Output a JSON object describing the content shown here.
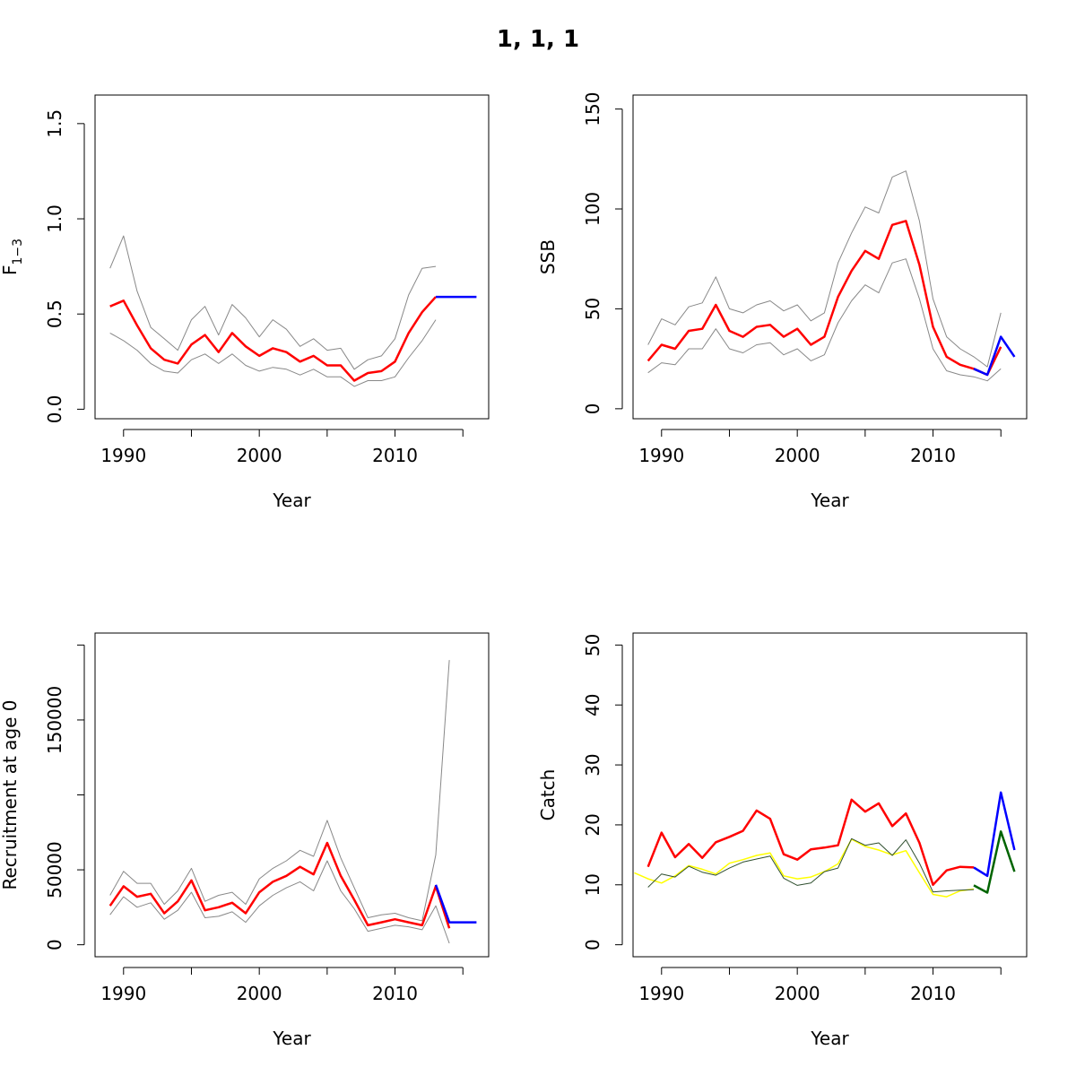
{
  "figure": {
    "title": "1, 1, 1"
  },
  "chart_data": [
    {
      "type": "line",
      "xlabel": "Year",
      "ylabel": "F",
      "ylabel_sub": "1−3",
      "xlim": [
        1987.9,
        2016.9
      ],
      "ylim": [
        -0.05,
        1.65
      ],
      "xticks": [
        1990,
        1995,
        2000,
        2005,
        2010,
        2015
      ],
      "xtick_labels": [
        "1990",
        "",
        "2000",
        "",
        "2010",
        ""
      ],
      "yticks": [
        0.0,
        0.5,
        1.0,
        1.5
      ],
      "ytick_labels": [
        "0.0",
        "0.5",
        "1.0",
        "1.5"
      ],
      "series": [
        {
          "color": "#888888",
          "width": 1,
          "x": [
            1989,
            1990,
            1991,
            1992,
            1993,
            1994,
            1995,
            1996,
            1997,
            1998,
            1999,
            2000,
            2001,
            2002,
            2003,
            2004,
            2005,
            2006,
            2007,
            2008,
            2009,
            2010,
            2011,
            2012,
            2013
          ],
          "values": [
            0.74,
            0.91,
            0.62,
            0.43,
            0.37,
            0.31,
            0.47,
            0.54,
            0.39,
            0.55,
            0.48,
            0.38,
            0.47,
            0.42,
            0.33,
            0.37,
            0.31,
            0.32,
            0.21,
            0.26,
            0.28,
            0.37,
            0.6,
            0.74,
            0.75
          ]
        },
        {
          "color": "#888888",
          "width": 1,
          "x": [
            1989,
            1990,
            1991,
            1992,
            1993,
            1994,
            1995,
            1996,
            1997,
            1998,
            1999,
            2000,
            2001,
            2002,
            2003,
            2004,
            2005,
            2006,
            2007,
            2008,
            2009,
            2010,
            2011,
            2012,
            2013
          ],
          "values": [
            0.4,
            0.36,
            0.31,
            0.24,
            0.2,
            0.19,
            0.26,
            0.29,
            0.24,
            0.29,
            0.23,
            0.2,
            0.22,
            0.21,
            0.18,
            0.21,
            0.17,
            0.17,
            0.12,
            0.15,
            0.15,
            0.17,
            0.27,
            0.36,
            0.47
          ]
        },
        {
          "color": "#ff0000",
          "width": 2.5,
          "x": [
            1989,
            1990,
            1991,
            1992,
            1993,
            1994,
            1995,
            1996,
            1997,
            1998,
            1999,
            2000,
            2001,
            2002,
            2003,
            2004,
            2005,
            2006,
            2007,
            2008,
            2009,
            2010,
            2011,
            2012,
            2013
          ],
          "values": [
            0.54,
            0.57,
            0.44,
            0.32,
            0.26,
            0.24,
            0.34,
            0.39,
            0.3,
            0.4,
            0.33,
            0.28,
            0.32,
            0.3,
            0.25,
            0.28,
            0.23,
            0.23,
            0.15,
            0.19,
            0.2,
            0.25,
            0.4,
            0.51,
            0.59
          ]
        },
        {
          "color": "#0000ff",
          "width": 2.5,
          "x": [
            2013,
            2014,
            2015,
            2016
          ],
          "values": [
            0.59,
            0.59,
            0.59,
            0.59
          ]
        }
      ]
    },
    {
      "type": "line",
      "xlabel": "Year",
      "ylabel": "SSB",
      "xlim": [
        1987.9,
        2016.9
      ],
      "ylim": [
        -5,
        157
      ],
      "xticks": [
        1990,
        1995,
        2000,
        2005,
        2010,
        2015
      ],
      "xtick_labels": [
        "1990",
        "",
        "2000",
        "",
        "2010",
        ""
      ],
      "yticks": [
        0,
        50,
        100,
        150
      ],
      "ytick_labels": [
        "0",
        "50",
        "100",
        "150"
      ],
      "series": [
        {
          "color": "#888888",
          "width": 1,
          "x": [
            1989,
            1990,
            1991,
            1992,
            1993,
            1994,
            1995,
            1996,
            1997,
            1998,
            1999,
            2000,
            2001,
            2002,
            2003,
            2004,
            2005,
            2006,
            2007,
            2008,
            2009,
            2010,
            2011,
            2012,
            2013,
            2014,
            2015
          ],
          "values": [
            32,
            45,
            42,
            51,
            53,
            66,
            50,
            48,
            52,
            54,
            49,
            52,
            44,
            48,
            73,
            88,
            101,
            98,
            116,
            119,
            94,
            55,
            36,
            30,
            26,
            21,
            48
          ]
        },
        {
          "color": "#888888",
          "width": 1,
          "x": [
            1989,
            1990,
            1991,
            1992,
            1993,
            1994,
            1995,
            1996,
            1997,
            1998,
            1999,
            2000,
            2001,
            2002,
            2003,
            2004,
            2005,
            2006,
            2007,
            2008,
            2009,
            2010,
            2011,
            2012,
            2013,
            2014,
            2015
          ],
          "values": [
            18,
            23,
            22,
            30,
            30,
            40,
            30,
            28,
            32,
            33,
            27,
            30,
            24,
            27,
            43,
            54,
            62,
            58,
            73,
            75,
            55,
            30,
            19,
            17,
            16,
            14,
            20
          ]
        },
        {
          "color": "#ff0000",
          "width": 2.5,
          "x": [
            1989,
            1990,
            1991,
            1992,
            1993,
            1994,
            1995,
            1996,
            1997,
            1998,
            1999,
            2000,
            2001,
            2002,
            2003,
            2004,
            2005,
            2006,
            2007,
            2008,
            2009,
            2010,
            2011,
            2012,
            2013,
            2014,
            2015
          ],
          "values": [
            24,
            32,
            30,
            39,
            40,
            52,
            39,
            36,
            41,
            42,
            36,
            40,
            32,
            36,
            56,
            69,
            79,
            75,
            92,
            94,
            72,
            41,
            26,
            22,
            20,
            17,
            31
          ]
        },
        {
          "color": "#0000ff",
          "width": 2.5,
          "x": [
            2013,
            2014,
            2015,
            2016
          ],
          "values": [
            20,
            17,
            36,
            26
          ]
        }
      ]
    },
    {
      "type": "line",
      "xlabel": "Year",
      "ylabel": "Recruitment at age 0",
      "xlim": [
        1987.9,
        2016.9
      ],
      "ylim": [
        -8000,
        208000
      ],
      "xticks": [
        1990,
        1995,
        2000,
        2005,
        2010,
        2015
      ],
      "xtick_labels": [
        "1990",
        "",
        "2000",
        "",
        "2010",
        ""
      ],
      "yticks": [
        0,
        50000,
        100000,
        150000,
        200000
      ],
      "ytick_labels": [
        "0",
        "50000",
        "",
        "150000",
        ""
      ],
      "series": [
        {
          "color": "#888888",
          "width": 1,
          "x": [
            1989,
            1990,
            1991,
            1992,
            1993,
            1994,
            1995,
            1996,
            1997,
            1998,
            1999,
            2000,
            2001,
            2002,
            2003,
            2004,
            2005,
            2006,
            2007,
            2008,
            2009,
            2010,
            2011,
            2012,
            2013,
            2014
          ],
          "values": [
            33000,
            49000,
            41000,
            41000,
            27000,
            36000,
            51000,
            29000,
            33000,
            35000,
            27000,
            44000,
            51000,
            56000,
            63000,
            59000,
            83000,
            58000,
            38000,
            18000,
            20000,
            21000,
            18000,
            16000,
            60000,
            190000
          ]
        },
        {
          "color": "#888888",
          "width": 1,
          "x": [
            1989,
            1990,
            1991,
            1992,
            1993,
            1994,
            1995,
            1996,
            1997,
            1998,
            1999,
            2000,
            2001,
            2002,
            2003,
            2004,
            2005,
            2006,
            2007,
            2008,
            2009,
            2010,
            2011,
            2012,
            2013,
            2014
          ],
          "values": [
            20000,
            32000,
            25000,
            28000,
            17000,
            23000,
            35000,
            18000,
            19000,
            22000,
            15000,
            26000,
            33000,
            38000,
            42000,
            36000,
            56000,
            36000,
            24000,
            9000,
            11000,
            13000,
            12000,
            10000,
            26000,
            1000
          ]
        },
        {
          "color": "#ff0000",
          "width": 2.5,
          "x": [
            1989,
            1990,
            1991,
            1992,
            1993,
            1994,
            1995,
            1996,
            1997,
            1998,
            1999,
            2000,
            2001,
            2002,
            2003,
            2004,
            2005,
            2006,
            2007,
            2008,
            2009,
            2010,
            2011,
            2012,
            2013,
            2014
          ],
          "values": [
            26000,
            39000,
            32000,
            34000,
            21000,
            29000,
            43000,
            23000,
            25000,
            28000,
            21000,
            35000,
            42000,
            46000,
            52000,
            47000,
            68000,
            46000,
            30000,
            13000,
            15000,
            17000,
            15000,
            13000,
            39000,
            11000
          ]
        },
        {
          "color": "#0000ff",
          "width": 2.5,
          "x": [
            2013,
            2014,
            2015,
            2016
          ],
          "values": [
            40000,
            15000,
            15000,
            15000
          ]
        }
      ]
    },
    {
      "type": "line",
      "xlabel": "Year",
      "ylabel": "Catch",
      "xlim": [
        1987.9,
        2016.9
      ],
      "ylim": [
        -2,
        52
      ],
      "xticks": [
        1990,
        1995,
        2000,
        2005,
        2010,
        2015
      ],
      "xtick_labels": [
        "1990",
        "",
        "2000",
        "",
        "2010",
        ""
      ],
      "yticks": [
        0,
        10,
        20,
        30,
        40,
        50
      ],
      "ytick_labels": [
        "0",
        "10",
        "20",
        "30",
        "40",
        "50"
      ],
      "series": [
        {
          "color": "#ffff00",
          "width": 1.5,
          "x": [
            1988,
            1989,
            1990,
            1991,
            1992,
            1993,
            1994,
            1995,
            1996,
            1997,
            1998,
            1999,
            2000,
            2001,
            2002,
            2003,
            2004,
            2005,
            2006,
            2007,
            2008,
            2009,
            2010,
            2011,
            2012,
            2013
          ],
          "values": [
            12,
            11,
            10.3,
            11.5,
            13.2,
            12.6,
            11.8,
            13.6,
            14.2,
            14.9,
            15.3,
            11.5,
            11,
            11.3,
            12.2,
            13.5,
            17.6,
            16.4,
            15.8,
            15,
            15.7,
            12,
            8.4,
            8,
            9,
            9.3
          ]
        },
        {
          "color": "#2f4f2f",
          "width": 1,
          "x": [
            1989,
            1990,
            1991,
            1992,
            1993,
            1994,
            1995,
            1996,
            1997,
            1998,
            1999,
            2000,
            2001,
            2002,
            2003,
            2004,
            2005,
            2006,
            2007,
            2008,
            2009,
            2010,
            2011,
            2012,
            2013
          ],
          "values": [
            9.6,
            11.8,
            11.3,
            13.1,
            12.1,
            11.6,
            12.8,
            13.8,
            14.3,
            14.8,
            11.1,
            9.9,
            10.3,
            12.2,
            12.8,
            17.7,
            16.6,
            17,
            14.9,
            17.5,
            13.6,
            8.8,
            9,
            9.1,
            9.2
          ]
        },
        {
          "color": "#ff0000",
          "width": 2.5,
          "x": [
            1989,
            1990,
            1991,
            1992,
            1993,
            1994,
            1995,
            1996,
            1997,
            1998,
            1999,
            2000,
            2001,
            2002,
            2003,
            2004,
            2005,
            2006,
            2007,
            2008,
            2009,
            2010,
            2011,
            2012,
            2013
          ],
          "values": [
            13,
            18.7,
            14.6,
            16.8,
            14.5,
            17.1,
            18,
            19,
            22.4,
            21,
            15.1,
            14.2,
            15.9,
            16.2,
            16.6,
            24.2,
            22.2,
            23.6,
            19.8,
            21.9,
            17,
            10,
            12.4,
            13,
            12.9
          ]
        },
        {
          "color": "#0000ff",
          "width": 2.5,
          "x": [
            2013,
            2014,
            2015,
            2016
          ],
          "values": [
            12.9,
            11.5,
            25.4,
            15.8
          ]
        },
        {
          "color": "#006400",
          "width": 2.5,
          "x": [
            2013,
            2014,
            2015,
            2016
          ],
          "values": [
            9.9,
            8.7,
            18.9,
            12.2
          ]
        }
      ]
    }
  ]
}
